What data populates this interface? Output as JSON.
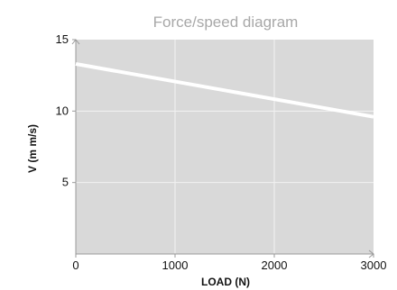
{
  "chart_data": {
    "type": "line",
    "title": "Force/speed diagram",
    "xlabel": "LOAD (N)",
    "ylabel": "V (m m/s)",
    "xlim": [
      0,
      3000
    ],
    "ylim": [
      0,
      15
    ],
    "x_ticks": [
      0,
      1000,
      2000,
      3000
    ],
    "x_tick_labels": [
      "0",
      "1000",
      "2000",
      "3000"
    ],
    "y_ticks": [
      5,
      10,
      15
    ],
    "y_tick_labels": [
      "5",
      "10",
      "15"
    ],
    "grid": true,
    "series": [
      {
        "x": [
          0,
          3000
        ],
        "y": [
          13.3,
          9.6
        ]
      }
    ],
    "colors": {
      "plot_background": "#d9d9d9",
      "grid": "#f2f2f2",
      "line": "#ffffff",
      "title": "#a8a8a8",
      "text": "#111111"
    }
  }
}
